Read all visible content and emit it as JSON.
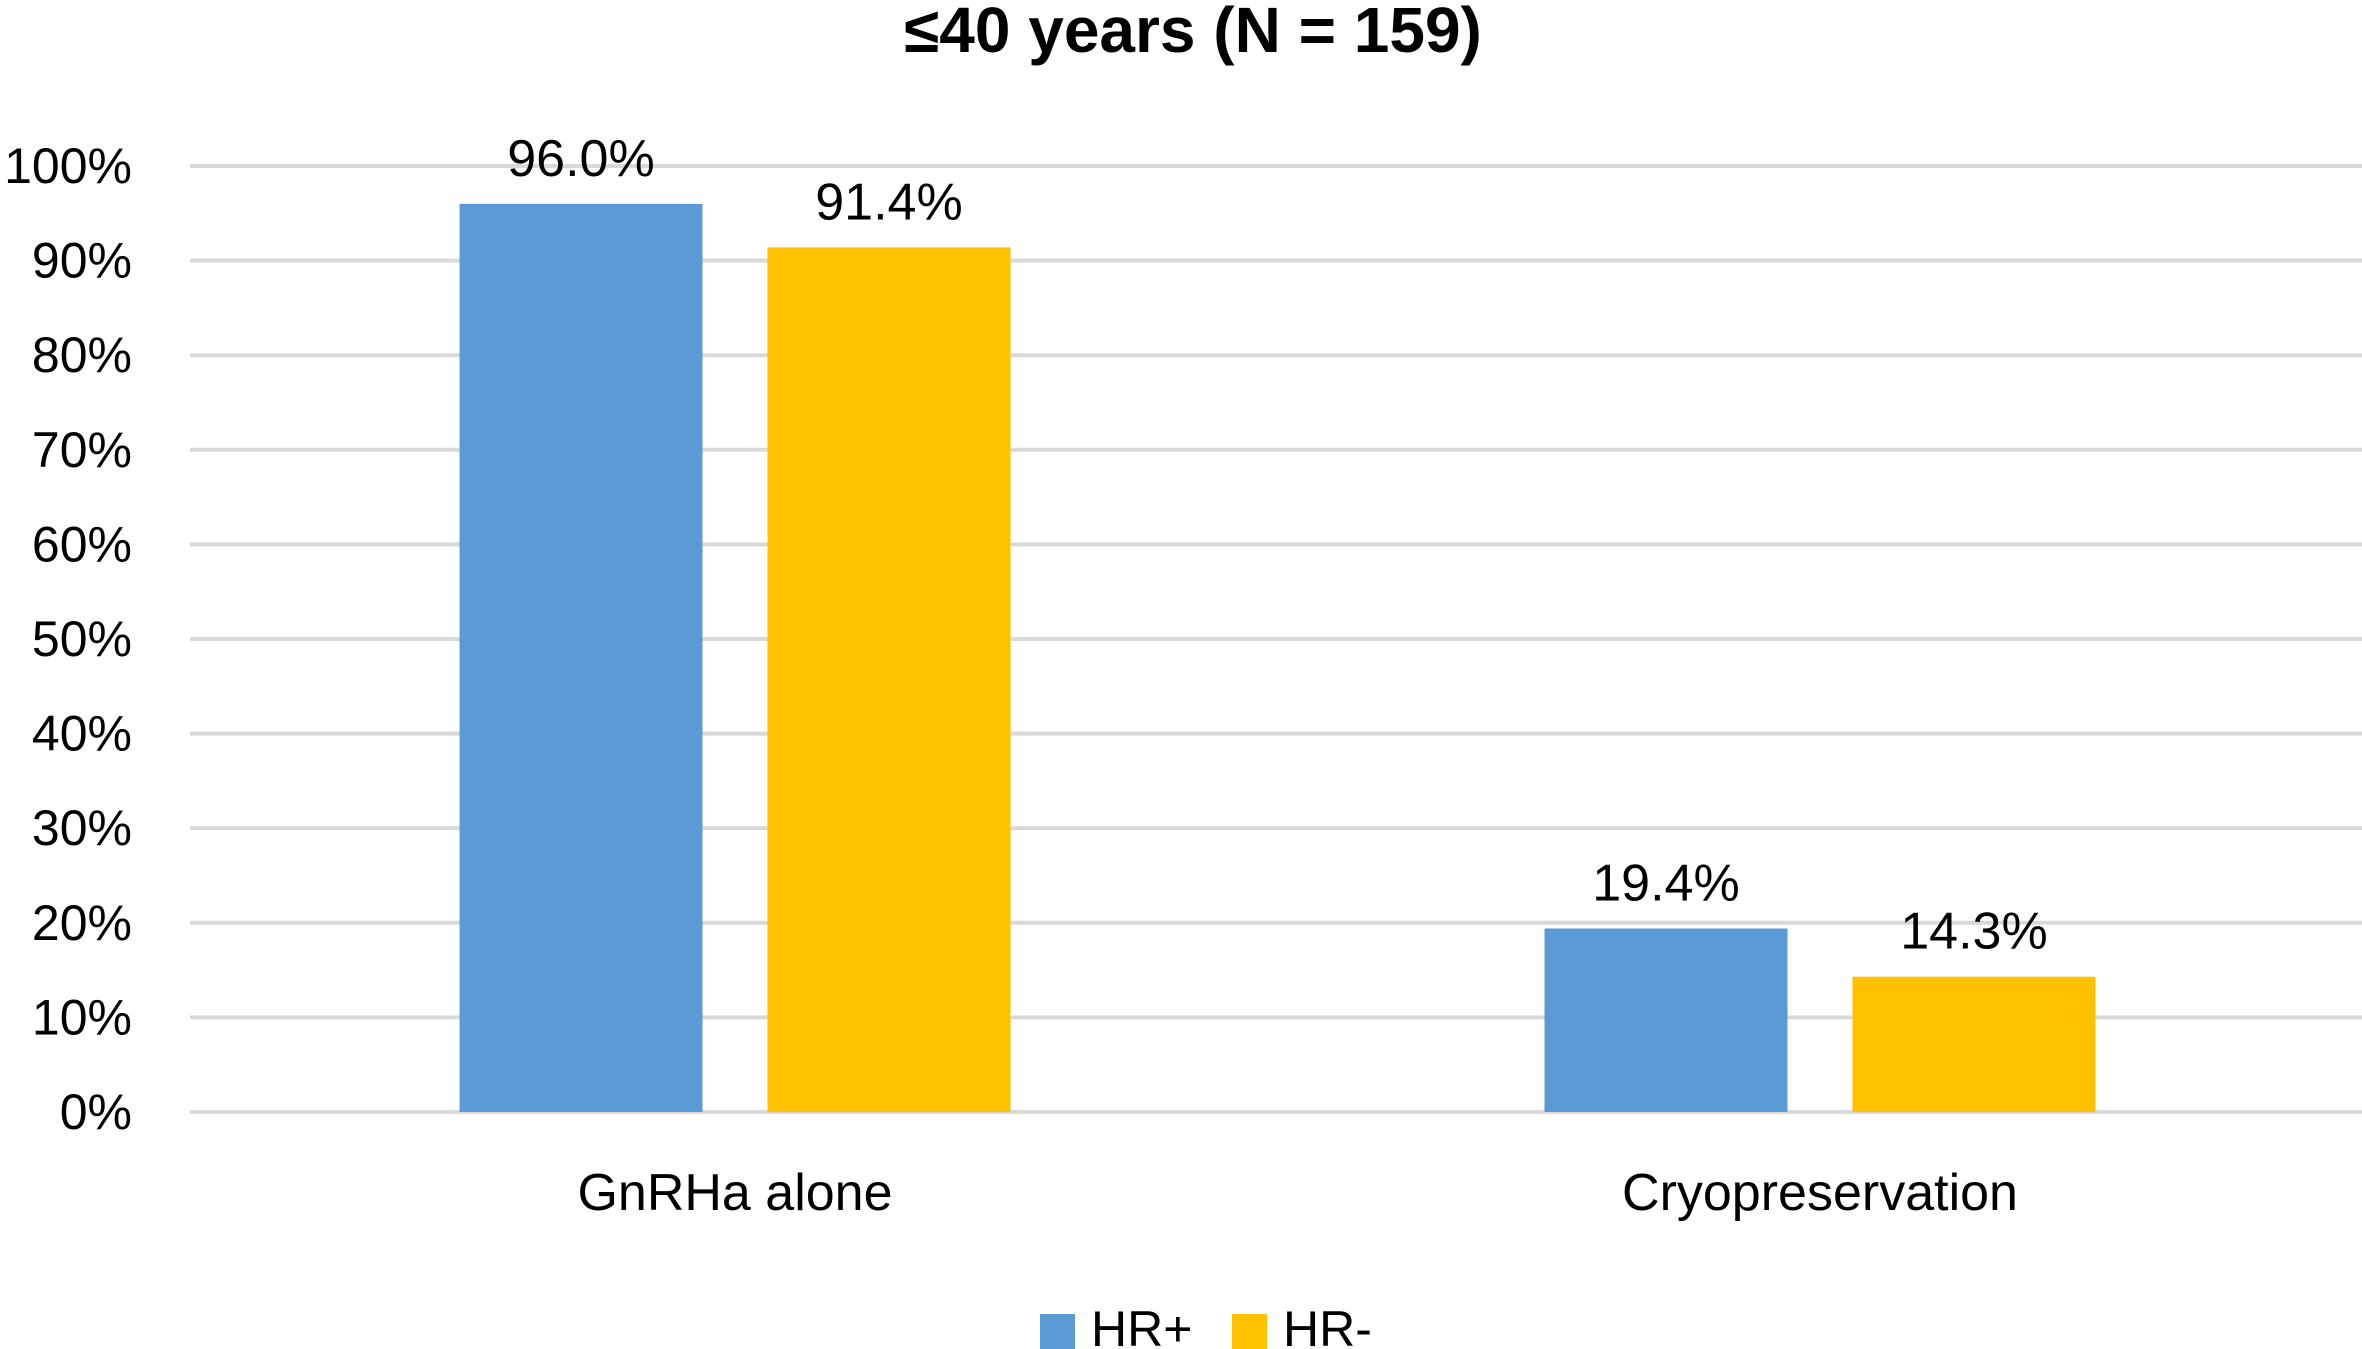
{
  "chart_data": {
    "type": "bar",
    "title": "≤40 years (N = 159)",
    "categories": [
      "GnRHa alone",
      "Cryopreservation"
    ],
    "series": [
      {
        "name": "HR+",
        "values": [
          96.0,
          19.4
        ],
        "labels": [
          "96.0%",
          "19.4%"
        ],
        "color": "#5b9bd5"
      },
      {
        "name": "HR-",
        "values": [
          91.4,
          14.3
        ],
        "labels": [
          "91.4%",
          "14.3%"
        ],
        "color": "#ffc000"
      }
    ],
    "yticks": [
      "0%",
      "10%",
      "20%",
      "30%",
      "40%",
      "50%",
      "60%",
      "70%",
      "80%",
      "90%",
      "100%"
    ],
    "ylim": [
      0,
      100
    ],
    "grid": true,
    "legend": "bottom-center"
  }
}
